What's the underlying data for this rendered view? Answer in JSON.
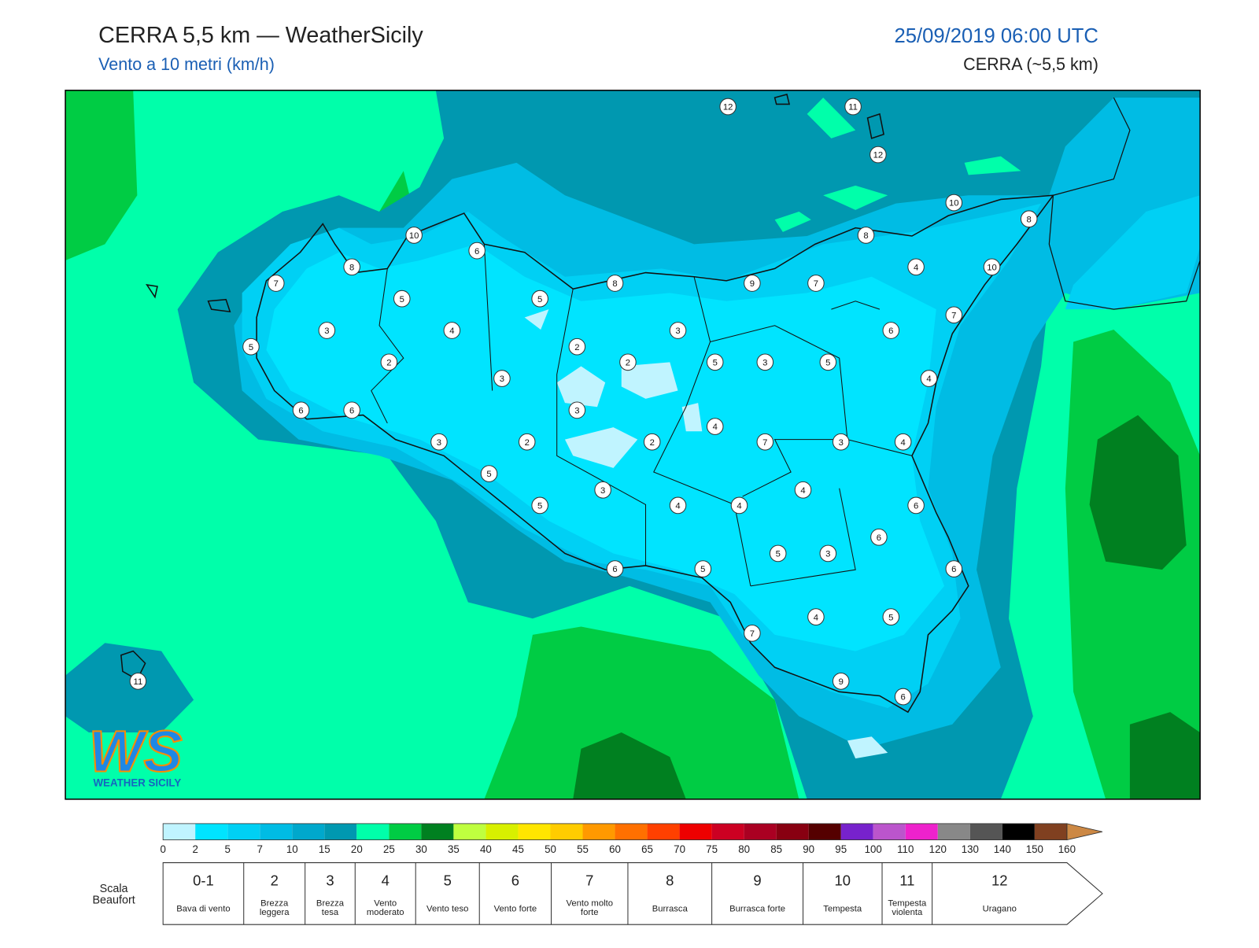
{
  "header": {
    "title": "CERRA 5,5 km — WeatherSicily",
    "subtitle": "Vento a 10 metri (km/h)",
    "datetime": "25/09/2019 06:00 UTC",
    "model": "CERRA (~5,5 km)"
  },
  "logo": {
    "text": "WS",
    "subtitle": "WEATHER SICILY"
  },
  "stations": [
    12,
    11,
    12,
    10,
    8,
    10,
    6,
    8,
    8,
    4,
    10,
    7,
    8,
    9,
    7,
    5,
    5,
    7,
    3,
    4,
    3,
    6,
    5,
    2,
    2,
    2,
    5,
    3,
    5,
    3,
    4,
    6,
    6,
    3,
    4,
    3,
    2,
    2,
    7,
    3,
    4,
    5,
    3,
    4,
    5,
    4,
    4,
    6,
    6,
    5,
    3,
    6,
    5,
    6,
    4,
    5,
    7,
    9,
    6,
    11
  ],
  "colorbar": {
    "ticks": [
      0,
      2,
      5,
      7,
      10,
      15,
      20,
      25,
      30,
      35,
      40,
      45,
      50,
      55,
      60,
      65,
      70,
      75,
      80,
      85,
      90,
      95,
      100,
      110,
      120,
      130,
      140,
      150,
      160
    ],
    "colors": [
      "#c0f4ff",
      "#00e4ff",
      "#00d0f4",
      "#00bce4",
      "#00a8cc",
      "#0098b0",
      "#00ffaa",
      "#00cc44",
      "#008020",
      "#bfff3f",
      "#d8f000",
      "#ffe600",
      "#ffcc00",
      "#ff9900",
      "#ff7000",
      "#ff4000",
      "#ee0000",
      "#cc0022",
      "#aa0022",
      "#880011",
      "#550000",
      "#7722cc",
      "#bb55cc",
      "#ee22cc",
      "#888888",
      "#555555",
      "#000000",
      "#804020",
      "#cc8040"
    ],
    "extend_color": "#cc8844"
  },
  "beaufort": {
    "label": "Scala Beaufort",
    "levels": [
      {
        "number": "0-1",
        "description": "Bava di vento"
      },
      {
        "number": 2,
        "description": "Brezza leggera"
      },
      {
        "number": 3,
        "description": "Brezza tesa"
      },
      {
        "number": 4,
        "description": "Vento moderato"
      },
      {
        "number": 5,
        "description": "Vento teso"
      },
      {
        "number": 6,
        "description": "Vento forte"
      },
      {
        "number": 7,
        "description": "Vento molto forte"
      },
      {
        "number": 8,
        "description": "Burrasca"
      },
      {
        "number": 9,
        "description": "Burrasca forte"
      },
      {
        "number": 10,
        "description": "Tempesta"
      },
      {
        "number": 11,
        "description": "Tempesta violenta"
      },
      {
        "number": 12,
        "description": "Uragano"
      }
    ]
  }
}
